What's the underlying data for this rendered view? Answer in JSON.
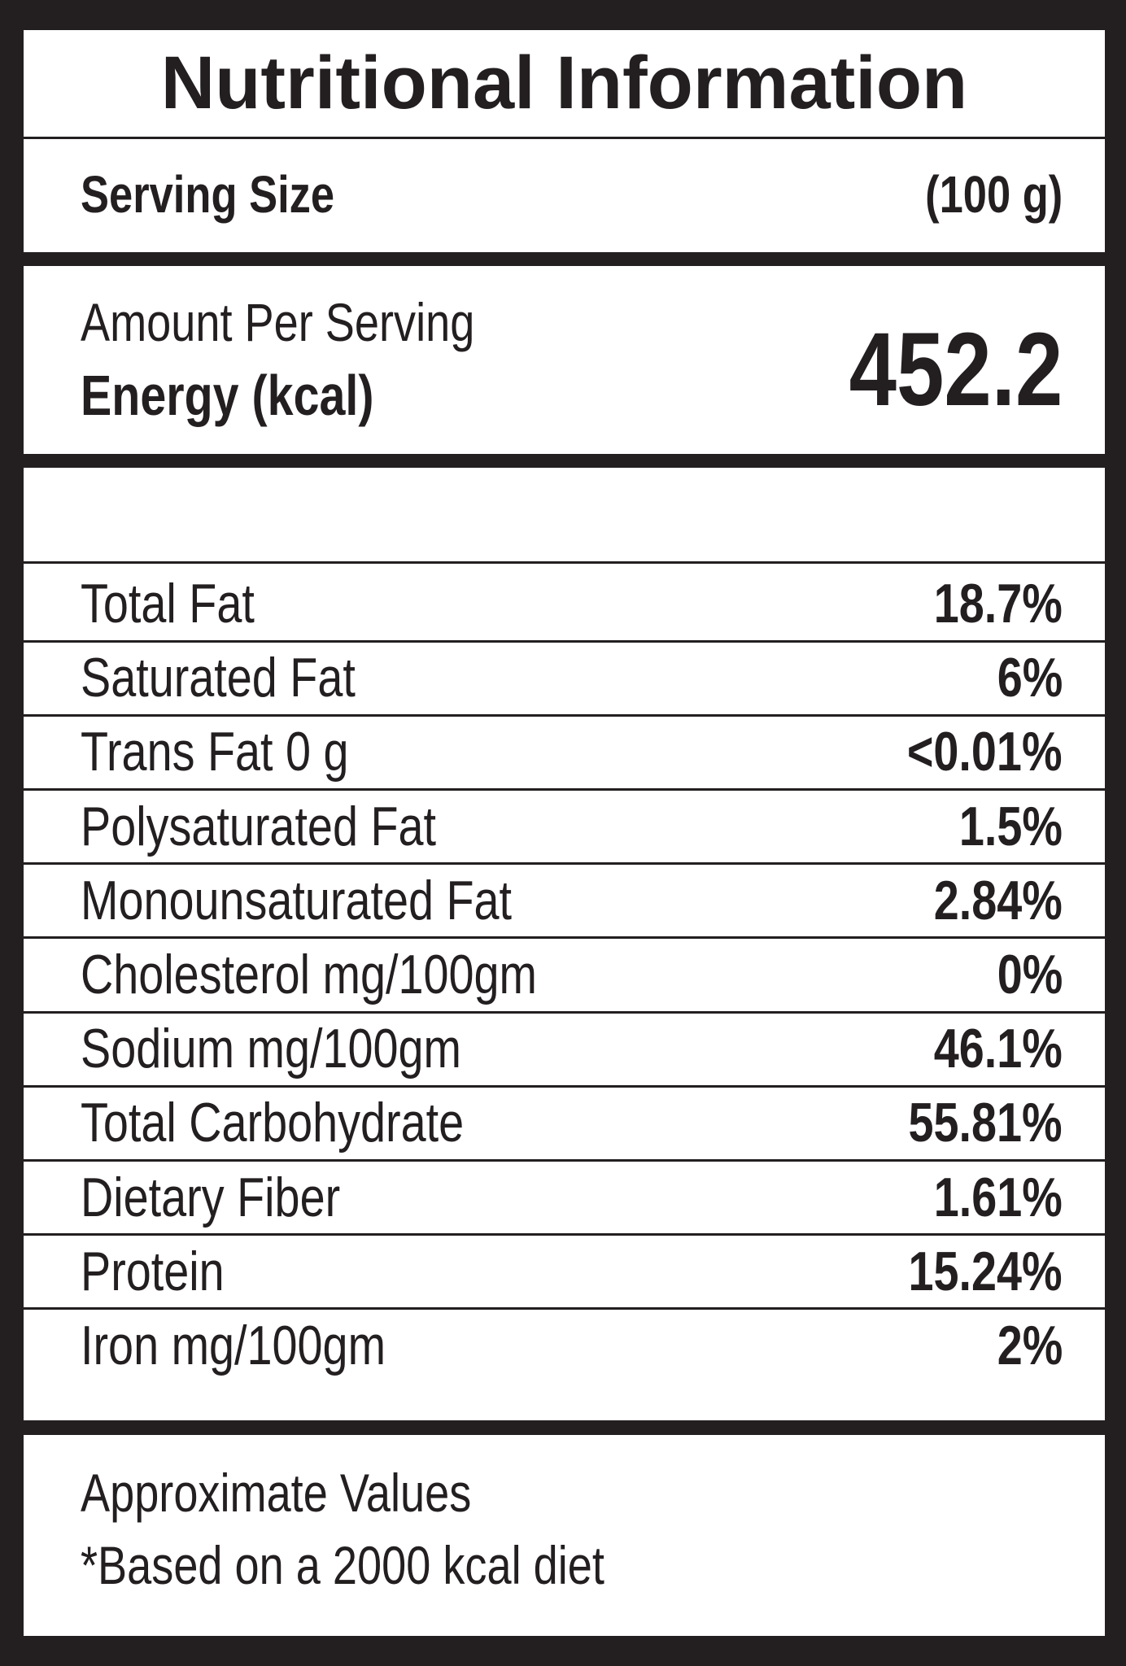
{
  "title": "Nutritional Information",
  "serving": {
    "label": "Serving Size",
    "value": "(100 g)"
  },
  "energy": {
    "caption": "Amount Per Serving",
    "label": "Energy (kcal)",
    "value": "452.2"
  },
  "rows": [
    {
      "name": "Total Fat",
      "value": "18.7%"
    },
    {
      "name": "Saturated Fat",
      "value": "6%"
    },
    {
      "name": "Trans Fat 0 g",
      "value": "<0.01%"
    },
    {
      "name": "Polysaturated Fat",
      "value": "1.5%"
    },
    {
      "name": "Monounsaturated Fat",
      "value": "2.84%"
    },
    {
      "name": "Cholesterol mg/100gm",
      "value": "0%"
    },
    {
      "name": "Sodium mg/100gm",
      "value": "46.1%"
    },
    {
      "name": "Total Carbohydrate",
      "value": "55.81%"
    },
    {
      "name": "Dietary Fiber",
      "value": "1.61%"
    },
    {
      "name": "Protein",
      "value": "15.24%"
    },
    {
      "name": "Iron mg/100gm",
      "value": "2%"
    }
  ],
  "footer": {
    "line1": "Approximate Values",
    "line2": "*Based on a 2000 kcal diet"
  }
}
